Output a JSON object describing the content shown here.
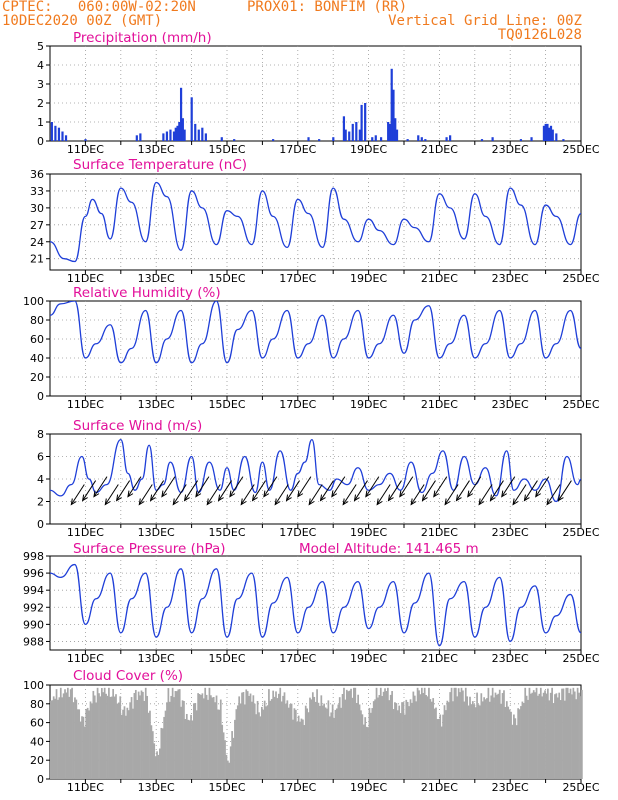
{
  "header": {
    "line1_left": "CPTEC:   060:00W-02:20N",
    "line1_mid": "PROX01: BONFIM (RR)",
    "line2_left": "10DEC2020 00Z (GMT)",
    "line2_right": "Vertical Grid Line: 00Z",
    "line3_right": "TQ0126L028"
  },
  "x_axis": {
    "tick_labels": [
      "11DEC",
      "13DEC",
      "15DEC",
      "17DEC",
      "19DEC",
      "21DEC",
      "23DEC",
      "25DEC"
    ],
    "tick_days": [
      11,
      13,
      15,
      17,
      19,
      21,
      23,
      25
    ],
    "range_days": [
      10,
      25
    ]
  },
  "colors": {
    "line": "#1f3fd8",
    "bar": "#1f3fd8",
    "cloud": "#a8a8a8",
    "arrow": "#000000",
    "grid": "#9a9a9a",
    "title": "#e2109a",
    "header": "#f07a1e"
  },
  "chart_data": [
    {
      "type": "bar",
      "title": "Precipitation (mm/h)",
      "ylim": [
        0,
        5
      ],
      "yticks": [
        "0",
        "1",
        "2",
        "3",
        "4",
        "5"
      ],
      "x": [
        10.05,
        10.15,
        10.25,
        10.35,
        10.45,
        11.0,
        12.45,
        12.55,
        13.2,
        13.3,
        13.4,
        13.5,
        13.55,
        13.6,
        13.65,
        13.7,
        13.75,
        13.8,
        14.0,
        14.1,
        14.2,
        14.3,
        14.4,
        14.85,
        15.2,
        16.3,
        17.3,
        17.6,
        18.0,
        18.3,
        18.35,
        18.45,
        18.55,
        18.65,
        18.75,
        18.8,
        18.9,
        19.1,
        19.2,
        19.35,
        19.55,
        19.6,
        19.65,
        19.7,
        19.75,
        19.8,
        20.1,
        20.4,
        20.5,
        20.6,
        21.2,
        21.3,
        22.2,
        22.5,
        23.3,
        23.6,
        23.95,
        24.0,
        24.05,
        24.1,
        24.15,
        24.2,
        24.3,
        24.5
      ],
      "values": [
        1.0,
        0.8,
        0.7,
        0.5,
        0.3,
        0.1,
        0.3,
        0.4,
        0.4,
        0.5,
        0.6,
        0.5,
        0.7,
        0.8,
        1.0,
        2.8,
        1.2,
        0.6,
        2.3,
        0.9,
        0.6,
        0.7,
        0.4,
        0.2,
        0.1,
        0.1,
        0.2,
        0.1,
        0.2,
        1.3,
        0.6,
        0.5,
        0.9,
        1.0,
        0.6,
        1.9,
        2.0,
        0.2,
        0.3,
        0.2,
        1.0,
        0.9,
        3.8,
        2.7,
        1.2,
        0.6,
        0.1,
        0.3,
        0.2,
        0.1,
        0.2,
        0.3,
        0.1,
        0.2,
        0.1,
        0.2,
        0.8,
        0.9,
        0.9,
        0.7,
        0.8,
        0.6,
        0.4,
        0.1
      ]
    },
    {
      "type": "line",
      "title": "Surface Temperature (nC)",
      "ylim": [
        19,
        36
      ],
      "yticks": [
        "21",
        "24",
        "27",
        "30",
        "33",
        "36"
      ],
      "tick_values": [
        21,
        24,
        27,
        30,
        33,
        36
      ],
      "x": [
        10.0,
        10.4,
        10.7,
        11.0,
        11.2,
        11.45,
        11.7,
        12.0,
        12.3,
        12.7,
        13.0,
        13.3,
        13.7,
        14.0,
        14.3,
        14.7,
        15.0,
        15.3,
        15.7,
        16.0,
        16.3,
        16.7,
        17.0,
        17.3,
        17.7,
        18.0,
        18.3,
        18.7,
        19.0,
        19.3,
        19.7,
        20.0,
        20.3,
        20.7,
        21.0,
        21.3,
        21.7,
        22.0,
        22.3,
        22.7,
        23.0,
        23.3,
        23.7,
        24.0,
        24.3,
        24.7,
        25.0
      ],
      "values": [
        24.0,
        21.0,
        20.5,
        28.5,
        31.5,
        29.0,
        24.5,
        33.5,
        31.0,
        24.0,
        34.5,
        32.0,
        22.5,
        33.0,
        30.0,
        23.5,
        29.5,
        28.5,
        23.5,
        33.0,
        28.5,
        23.0,
        31.5,
        29.0,
        23.0,
        33.5,
        28.0,
        24.0,
        28.0,
        26.0,
        23.5,
        28.0,
        26.5,
        24.0,
        32.5,
        30.0,
        24.5,
        32.5,
        28.5,
        23.5,
        33.5,
        30.5,
        23.5,
        30.5,
        28.5,
        23.5,
        29.0
      ]
    },
    {
      "type": "line",
      "title": "Relative Humidity (%)",
      "ylim": [
        0,
        100
      ],
      "yticks": [
        "0",
        "20",
        "40",
        "60",
        "80",
        "100"
      ],
      "tick_values": [
        0,
        20,
        40,
        60,
        80,
        100
      ],
      "x": [
        10.0,
        10.3,
        10.7,
        11.0,
        11.3,
        11.7,
        12.0,
        12.3,
        12.7,
        13.0,
        13.3,
        13.7,
        14.0,
        14.3,
        14.7,
        15.0,
        15.3,
        15.7,
        16.0,
        16.3,
        16.7,
        17.0,
        17.3,
        17.7,
        18.0,
        18.3,
        18.7,
        19.0,
        19.3,
        19.7,
        20.0,
        20.3,
        20.7,
        21.0,
        21.3,
        21.7,
        22.0,
        22.3,
        22.7,
        23.0,
        23.3,
        23.7,
        24.0,
        24.3,
        24.7,
        25.0
      ],
      "values": [
        85,
        97,
        100,
        40,
        55,
        75,
        35,
        50,
        90,
        35,
        60,
        90,
        35,
        55,
        100,
        35,
        70,
        90,
        40,
        60,
        90,
        40,
        55,
        85,
        40,
        60,
        90,
        40,
        55,
        85,
        45,
        80,
        95,
        40,
        55,
        85,
        40,
        55,
        90,
        40,
        55,
        90,
        40,
        55,
        90,
        50
      ]
    },
    {
      "type": "line",
      "title": "Surface Wind (m/s)",
      "ylim": [
        0,
        8
      ],
      "yticks": [
        "0",
        "2",
        "4",
        "6",
        "8"
      ],
      "tick_values": [
        0,
        2,
        4,
        6,
        8
      ],
      "x": [
        10.0,
        10.3,
        10.6,
        10.9,
        11.1,
        11.3,
        11.6,
        12.0,
        12.2,
        12.4,
        12.6,
        12.8,
        13.0,
        13.2,
        13.4,
        13.7,
        14.0,
        14.2,
        14.5,
        14.8,
        15.0,
        15.2,
        15.5,
        15.8,
        16.0,
        16.2,
        16.5,
        16.8,
        17.0,
        17.2,
        17.4,
        17.6,
        17.9,
        18.1,
        18.4,
        18.7,
        19.0,
        19.3,
        19.6,
        19.9,
        20.2,
        20.5,
        20.8,
        21.1,
        21.4,
        21.7,
        22.0,
        22.3,
        22.6,
        22.9,
        23.1,
        23.4,
        23.7,
        24.0,
        24.3,
        24.6,
        24.9,
        25.0
      ],
      "values": [
        3.0,
        2.5,
        3.5,
        6.0,
        4.0,
        2.8,
        3.5,
        7.5,
        4.5,
        3.0,
        4.0,
        7.0,
        3.0,
        3.5,
        5.5,
        2.8,
        6.0,
        2.8,
        5.5,
        3.0,
        5.0,
        3.0,
        6.0,
        2.8,
        5.5,
        3.0,
        6.5,
        3.0,
        4.5,
        5.5,
        7.5,
        3.5,
        3.0,
        4.0,
        3.5,
        5.0,
        3.0,
        3.5,
        4.5,
        3.0,
        5.5,
        2.8,
        4.5,
        6.5,
        3.0,
        6.0,
        3.5,
        5.0,
        2.5,
        6.5,
        3.0,
        4.0,
        3.0,
        4.0,
        2.0,
        6.0,
        3.5,
        4.0
      ]
    },
    {
      "type": "line",
      "title": "Surface Pressure (hPa)",
      "annotation": "Model Altitude: 141.465 m",
      "ylim": [
        987,
        998
      ],
      "yticks": [
        "988",
        "990",
        "992",
        "994",
        "996",
        "998"
      ],
      "tick_values": [
        988,
        990,
        992,
        994,
        996,
        998
      ],
      "x": [
        10.0,
        10.3,
        10.7,
        11.0,
        11.3,
        11.7,
        12.0,
        12.3,
        12.7,
        13.0,
        13.3,
        13.7,
        14.0,
        14.3,
        14.7,
        15.0,
        15.3,
        15.7,
        16.0,
        16.3,
        16.7,
        17.0,
        17.3,
        17.7,
        18.0,
        18.3,
        18.7,
        19.0,
        19.3,
        19.7,
        20.0,
        20.3,
        20.7,
        21.0,
        21.3,
        21.7,
        22.0,
        22.3,
        22.7,
        23.0,
        23.3,
        23.7,
        24.0,
        24.3,
        24.7,
        25.0
      ],
      "values": [
        996.0,
        995.5,
        997.0,
        990.0,
        993.0,
        996.0,
        989.0,
        993.0,
        996.0,
        988.5,
        992.0,
        996.5,
        989.0,
        993.0,
        996.5,
        988.5,
        993.0,
        996.0,
        988.5,
        992.5,
        995.5,
        989.0,
        992.0,
        995.0,
        989.0,
        992.0,
        995.0,
        989.5,
        992.0,
        995.0,
        989.0,
        992.5,
        996.0,
        987.5,
        993.0,
        995.0,
        988.5,
        992.0,
        995.5,
        988.0,
        992.0,
        994.5,
        989.0,
        991.0,
        993.5,
        989.0
      ]
    },
    {
      "type": "area",
      "title": "Cloud Cover (%)",
      "ylim": [
        0,
        100
      ],
      "yticks": [
        "0",
        "20",
        "40",
        "60",
        "80",
        "100"
      ],
      "tick_values": [
        0,
        20,
        40,
        60,
        80,
        100
      ],
      "x": [
        10.0,
        10.3,
        10.6,
        10.9,
        11.2,
        11.5,
        11.8,
        12.1,
        12.4,
        12.7,
        13.0,
        13.3,
        13.6,
        13.9,
        14.2,
        14.5,
        14.8,
        15.0,
        15.3,
        15.6,
        15.9,
        16.2,
        16.5,
        16.8,
        17.1,
        17.4,
        17.7,
        18.0,
        18.3,
        18.6,
        18.9,
        19.2,
        19.5,
        19.8,
        20.1,
        20.4,
        20.7,
        21.0,
        21.3,
        21.6,
        21.9,
        22.2,
        22.5,
        22.8,
        23.1,
        23.4,
        23.7,
        24.0,
        24.3,
        24.6,
        25.0
      ],
      "values": [
        85,
        92,
        95,
        60,
        88,
        95,
        90,
        70,
        90,
        92,
        20,
        88,
        95,
        60,
        90,
        92,
        75,
        15,
        85,
        92,
        70,
        88,
        92,
        75,
        60,
        90,
        80,
        70,
        92,
        95,
        55,
        92,
        95,
        75,
        80,
        95,
        92,
        60,
        92,
        95,
        80,
        85,
        92,
        88,
        60,
        90,
        95,
        92,
        88,
        95,
        92
      ]
    }
  ]
}
